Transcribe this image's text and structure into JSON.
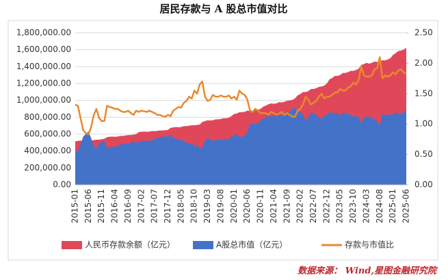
{
  "chart_data": {
    "type": "area",
    "title": "居民存款与 A 股总市值对比",
    "source": "数据来源： Wind,星图金融研究院",
    "grid": true,
    "legend": "bottom",
    "ylim": [
      0,
      1800000
    ],
    "yticks": [
      {
        "value": 0,
        "label": "0.00"
      },
      {
        "value": 200000,
        "label": "200,000.00"
      },
      {
        "value": 400000,
        "label": "400,000.00"
      },
      {
        "value": 600000,
        "label": "600,000.00"
      },
      {
        "value": 800000,
        "label": "800,000.00"
      },
      {
        "value": 1000000,
        "label": "1,000,000.00"
      },
      {
        "value": 1200000,
        "label": "1,200,000.00"
      },
      {
        "value": 1400000,
        "label": "1,400,000.00"
      },
      {
        "value": 1600000,
        "label": "1,600,000.00"
      },
      {
        "value": 1800000,
        "label": "1,800,000.00"
      }
    ],
    "y2lim": [
      0,
      2.5
    ],
    "y2ticks": [
      {
        "value": 0,
        "label": "0.00"
      },
      {
        "value": 0.5,
        "label": "0.50"
      },
      {
        "value": 1,
        "label": "1.00"
      },
      {
        "value": 1.5,
        "label": "1.50"
      },
      {
        "value": 2,
        "label": "2.00"
      },
      {
        "value": 2.5,
        "label": "2.50"
      }
    ],
    "categories": [
      "2015-01",
      null,
      null,
      null,
      null,
      "2015-06",
      null,
      null,
      null,
      null,
      "2015-11",
      null,
      null,
      null,
      null,
      "2016-04",
      null,
      null,
      null,
      null,
      "2016-09",
      null,
      null,
      null,
      null,
      "2017-02",
      null,
      null,
      null,
      null,
      "2017-07",
      null,
      null,
      null,
      null,
      "2017-12",
      null,
      null,
      null,
      null,
      "2018-05",
      null,
      null,
      null,
      null,
      "2018-10",
      null,
      null,
      null,
      null,
      "2019-03",
      null,
      null,
      null,
      null,
      "2019-08",
      null,
      null,
      null,
      null,
      "2020-01",
      null,
      null,
      null,
      null,
      "2020-06",
      null,
      null,
      null,
      null,
      "2020-11",
      null,
      null,
      null,
      null,
      "2021-04",
      null,
      null,
      null,
      null,
      "2021-09",
      null,
      null,
      null,
      null,
      "2022-02",
      null,
      null,
      null,
      null,
      "2022-07",
      null,
      null,
      null,
      null,
      "2022-12",
      null,
      null,
      null,
      null,
      "2023-05",
      null,
      null,
      null,
      null,
      "2023-10",
      null,
      null,
      null,
      null,
      "2024-03",
      null,
      null,
      null,
      null,
      "2024-08",
      null,
      null,
      null,
      null,
      "2025-01",
      null,
      null,
      null,
      null,
      "2025-06"
    ],
    "series": [
      {
        "name": "人民币存款余额（亿元）",
        "type": "area",
        "color": "#e0485a",
        "values": [
          516000,
          520000,
          525000,
          515000,
          512000,
          525000,
          525000,
          530000,
          535000,
          535000,
          540000,
          545000,
          565000,
          570000,
          572000,
          570000,
          572000,
          580000,
          580000,
          585000,
          590000,
          590000,
          595000,
          600000,
          625000,
          628000,
          630000,
          628000,
          630000,
          638000,
          636000,
          640000,
          645000,
          644000,
          648000,
          650000,
          675000,
          680000,
          685000,
          682000,
          685000,
          695000,
          695000,
          700000,
          705000,
          705000,
          710000,
          715000,
          745000,
          755000,
          765000,
          762000,
          765000,
          775000,
          775000,
          780000,
          790000,
          790000,
          795000,
          815000,
          840000,
          845000,
          860000,
          860000,
          865000,
          880000,
          875000,
          880000,
          895000,
          890000,
          900000,
          925000,
          940000,
          955000,
          965000,
          960000,
          965000,
          980000,
          975000,
          985000,
          995000,
          1000000,
          1005000,
          1025000,
          1060000,
          1075000,
          1100000,
          1100000,
          1110000,
          1135000,
          1135000,
          1145000,
          1160000,
          1165000,
          1175000,
          1200000,
          1250000,
          1265000,
          1290000,
          1290000,
          1300000,
          1325000,
          1325000,
          1335000,
          1350000,
          1350000,
          1360000,
          1375000,
          1420000,
          1430000,
          1445000,
          1435000,
          1445000,
          1460000,
          1455000,
          1465000,
          1475000,
          1475000,
          1485000,
          1500000,
          1540000,
          1560000,
          1585000,
          1590000,
          1600000,
          1625000
        ]
      },
      {
        "name": "A股总市值（亿元）",
        "type": "area",
        "color": "#4472c8",
        "values": [
          391000,
          400000,
          477000,
          572000,
          602000,
          633000,
          553000,
          461000,
          428000,
          486000,
          514000,
          519000,
          435000,
          445000,
          450000,
          456000,
          458000,
          475000,
          483000,
          488000,
          484000,
          500000,
          517000,
          492000,
          521000,
          515000,
          521000,
          523000,
          516000,
          532000,
          539000,
          557000,
          561000,
          570000,
          579000,
          565000,
          597000,
          557000,
          548000,
          533000,
          539000,
          515000,
          504000,
          483000,
          496000,
          455000,
          473000,
          433000,
          438000,
          521000,
          554000,
          544000,
          517000,
          534000,
          534000,
          531000,
          545000,
          545000,
          541000,
          574000,
          579000,
          604000,
          555000,
          573000,
          584000,
          629000,
          717000,
          733000,
          716000,
          730000,
          763000,
          784000,
          797000,
          830000,
          804000,
          814000,
          839000,
          838000,
          813000,
          857000,
          843000,
          870000,
          897000,
          915000,
          869000,
          860000,
          833000,
          759000,
          793000,
          860000,
          841000,
          830000,
          800000,
          777000,
          827000,
          828000,
          862000,
          855000,
          849000,
          849000,
          823000,
          855000,
          855000,
          834000,
          833000,
          804000,
          824000,
          799000,
          728000,
          794000,
          812000,
          806000,
          803000,
          768000,
          758000,
          698000,
          843000,
          819000,
          834000,
          833000,
          832000,
          857000,
          843000,
          837000,
          865000,
          893000
        ]
      },
      {
        "name": "存款与市值比",
        "type": "line",
        "axis": "y2",
        "color": "#e8892c",
        "values": [
          1.32,
          1.3,
          1.1,
          0.9,
          0.85,
          0.83,
          0.95,
          1.15,
          1.25,
          1.1,
          1.05,
          1.05,
          1.3,
          1.28,
          1.27,
          1.25,
          1.25,
          1.22,
          1.2,
          1.2,
          1.22,
          1.18,
          1.15,
          1.22,
          1.2,
          1.22,
          1.21,
          1.2,
          1.22,
          1.2,
          1.18,
          1.15,
          1.15,
          1.13,
          1.12,
          1.15,
          1.13,
          1.22,
          1.25,
          1.28,
          1.27,
          1.35,
          1.38,
          1.45,
          1.42,
          1.55,
          1.5,
          1.65,
          1.7,
          1.45,
          1.38,
          1.4,
          1.48,
          1.45,
          1.45,
          1.47,
          1.45,
          1.45,
          1.47,
          1.42,
          1.45,
          1.4,
          1.55,
          1.5,
          1.48,
          1.4,
          1.22,
          1.2,
          1.25,
          1.22,
          1.18,
          1.18,
          1.18,
          1.15,
          1.2,
          1.18,
          1.15,
          1.17,
          1.2,
          1.15,
          1.18,
          1.15,
          1.12,
          1.12,
          1.22,
          1.25,
          1.32,
          1.45,
          1.4,
          1.32,
          1.35,
          1.38,
          1.45,
          1.5,
          1.42,
          1.45,
          1.45,
          1.48,
          1.52,
          1.52,
          1.58,
          1.55,
          1.55,
          1.6,
          1.62,
          1.68,
          1.65,
          1.72,
          1.95,
          1.8,
          1.78,
          1.78,
          1.8,
          1.9,
          1.92,
          2.1,
          1.75,
          1.8,
          1.78,
          1.8,
          1.85,
          1.82,
          1.88,
          1.9,
          1.85,
          1.82
        ]
      }
    ]
  }
}
